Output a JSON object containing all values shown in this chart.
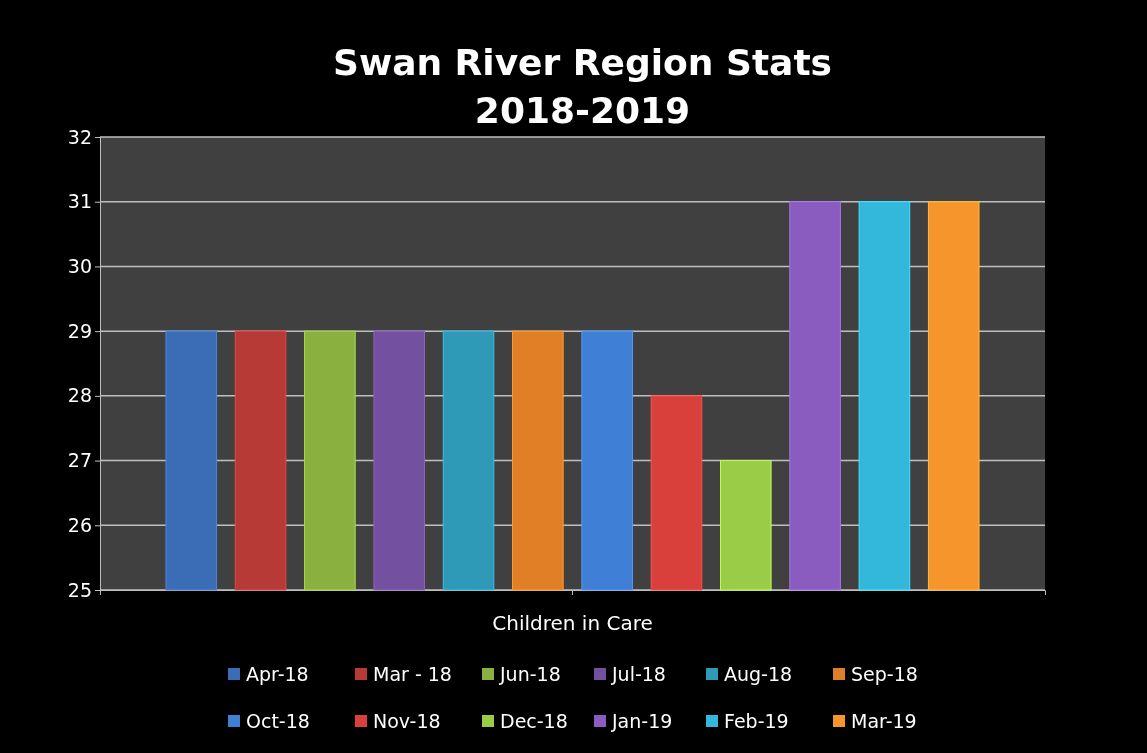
{
  "chart_data": {
    "type": "bar",
    "title": "Swan River Region Stats\n2018-2019",
    "categories": [
      "Children in Care"
    ],
    "series": [
      {
        "name": "Apr-18",
        "color": "#3a6db5",
        "values": [
          29
        ]
      },
      {
        "name": "Mar - 18",
        "color": "#b83a36",
        "values": [
          29
        ]
      },
      {
        "name": "Jun-18",
        "color": "#8ab040",
        "values": [
          29
        ]
      },
      {
        "name": "Jul-18",
        "color": "#7350a0",
        "values": [
          29
        ]
      },
      {
        "name": "Aug-18",
        "color": "#2f9ab8",
        "values": [
          29
        ]
      },
      {
        "name": "Sep-18",
        "color": "#e07f26",
        "values": [
          29
        ]
      },
      {
        "name": "Oct-18",
        "color": "#3f7fd6",
        "values": [
          29
        ]
      },
      {
        "name": "Nov-18",
        "color": "#d9403c",
        "values": [
          28
        ]
      },
      {
        "name": "Dec-18",
        "color": "#9acc48",
        "values": [
          27
        ]
      },
      {
        "name": "Jan-19",
        "color": "#8a5cc0",
        "values": [
          31
        ]
      },
      {
        "name": "Feb-19",
        "color": "#33b8dc",
        "values": [
          31
        ]
      },
      {
        "name": "Mar-19",
        "color": "#f5952c",
        "values": [
          31
        ]
      }
    ],
    "ylim": [
      25,
      32
    ],
    "yticks": [
      25,
      26,
      27,
      28,
      29,
      30,
      31,
      32
    ],
    "grid": "y",
    "legend": "bottom"
  }
}
